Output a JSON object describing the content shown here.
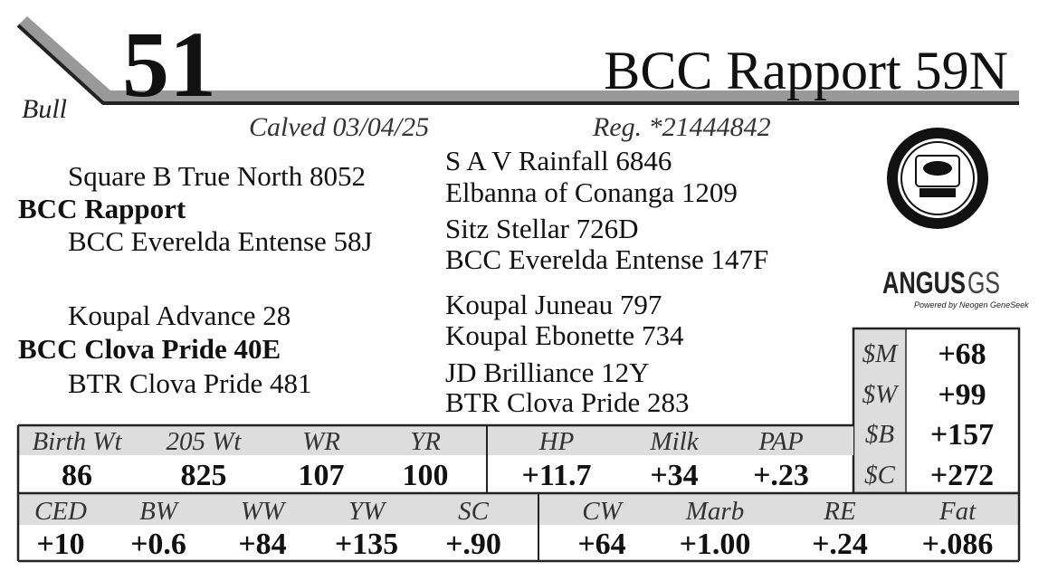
{
  "header": {
    "sex": "Bull",
    "lot": "51",
    "name": "BCC Rapport 59N",
    "calved": "Calved 03/04/25",
    "registration": "Reg. *21444842"
  },
  "pedigree": {
    "sire": {
      "name": "BCC Rapport",
      "sire": "Square B True North 8052",
      "dam": "BCC Everelda Entense 58J",
      "ancestors": [
        "S A V Rainfall 6846",
        "Elbanna of Conanga 1209",
        "Sitz Stellar 726D",
        "BCC Everelda Entense 147F"
      ]
    },
    "dam": {
      "name": "BCC Clova Pride 40E",
      "sire": "Koupal Advance 28",
      "dam": "BTR Clova Pride 481",
      "ancestors": [
        "Koupal Juneau 797",
        "Koupal Ebonette 734",
        "JD Brilliance 12Y",
        "BTR Clova Pride 283"
      ]
    }
  },
  "logo": {
    "brand": "ANGUS",
    "suffix": "GS",
    "tagline": "Powered by Neogen GeneSeek"
  },
  "indexes": [
    {
      "label": "$M",
      "value": "+68"
    },
    {
      "label": "$W",
      "value": "+99"
    },
    {
      "label": "$B",
      "value": "+157"
    },
    {
      "label": "$C",
      "value": "+272"
    }
  ],
  "performance": {
    "headers": [
      "Birth Wt",
      "205 Wt",
      "WR",
      "YR",
      "HP",
      "Milk",
      "PAP"
    ],
    "values": [
      "86",
      "825",
      "107",
      "100",
      "+11.7",
      "+34",
      "+.23"
    ]
  },
  "epds": {
    "headers": [
      "CED",
      "BW",
      "WW",
      "YW",
      "SC",
      "CW",
      "Marb",
      "RE",
      "Fat"
    ],
    "values": [
      "+10",
      "+0.6",
      "+84",
      "+135",
      "+.90",
      "+64",
      "+1.00",
      "+.24",
      "+.086"
    ]
  }
}
